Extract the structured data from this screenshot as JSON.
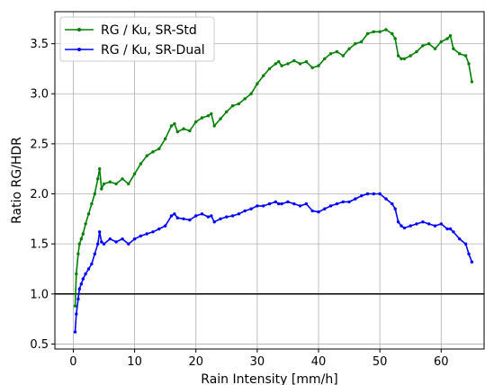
{
  "chart_data": {
    "type": "line",
    "xlabel": "Rain Intensity [mm/h]",
    "ylabel": "Ratio RG/HDR",
    "xlim": [
      -3,
      67
    ],
    "ylim": [
      0.45,
      3.82
    ],
    "xticks": [
      0,
      10,
      20,
      30,
      40,
      50,
      60
    ],
    "yticks": [
      0.5,
      1.0,
      1.5,
      2.0,
      2.5,
      3.0,
      3.5
    ],
    "grid": true,
    "legend_position": "top-left",
    "reference_line": {
      "y": 1.0,
      "color": "#000000"
    },
    "series": [
      {
        "name": "RG / Ku, SR-Std",
        "color": "#008000",
        "x": [
          0.3,
          0.5,
          0.8,
          1.0,
          1.3,
          1.6,
          2.0,
          2.5,
          3.0,
          3.5,
          4.0,
          4.3,
          4.6,
          5.0,
          6.0,
          7.0,
          8.0,
          9.0,
          10.0,
          11.0,
          12.0,
          13.0,
          14.0,
          15.0,
          16.0,
          16.5,
          17.0,
          18.0,
          19.0,
          20.0,
          21.0,
          22.0,
          22.5,
          23.0,
          24.0,
          25.0,
          26.0,
          27.0,
          28.0,
          29.0,
          30.0,
          31.0,
          32.0,
          33.0,
          33.5,
          34.0,
          35.0,
          36.0,
          37.0,
          38.0,
          39.0,
          40.0,
          41.0,
          42.0,
          43.0,
          44.0,
          45.0,
          46.0,
          47.0,
          48.0,
          49.0,
          50.0,
          51.0,
          52.0,
          52.5,
          53.0,
          53.5,
          54.0,
          55.0,
          56.0,
          57.0,
          58.0,
          59.0,
          60.0,
          61.0,
          61.5,
          62.0,
          63.0,
          64.0,
          64.5,
          65.0
        ],
        "y": [
          0.88,
          1.2,
          1.4,
          1.5,
          1.55,
          1.6,
          1.7,
          1.8,
          1.9,
          2.0,
          2.15,
          2.25,
          2.05,
          2.1,
          2.12,
          2.1,
          2.15,
          2.1,
          2.2,
          2.3,
          2.38,
          2.42,
          2.45,
          2.55,
          2.68,
          2.7,
          2.62,
          2.65,
          2.63,
          2.72,
          2.76,
          2.78,
          2.8,
          2.68,
          2.75,
          2.82,
          2.88,
          2.9,
          2.95,
          3.0,
          3.1,
          3.18,
          3.25,
          3.3,
          3.32,
          3.28,
          3.3,
          3.33,
          3.3,
          3.32,
          3.26,
          3.28,
          3.35,
          3.4,
          3.42,
          3.38,
          3.45,
          3.5,
          3.52,
          3.6,
          3.62,
          3.62,
          3.64,
          3.6,
          3.55,
          3.38,
          3.35,
          3.35,
          3.38,
          3.42,
          3.48,
          3.5,
          3.45,
          3.52,
          3.55,
          3.58,
          3.45,
          3.4,
          3.38,
          3.3,
          3.12
        ]
      },
      {
        "name": "RG / Ku, SR-Dual",
        "color": "#0000ff",
        "x": [
          0.3,
          0.5,
          0.8,
          1.0,
          1.3,
          1.6,
          2.0,
          2.5,
          3.0,
          3.5,
          4.0,
          4.3,
          4.6,
          5.0,
          6.0,
          7.0,
          8.0,
          9.0,
          10.0,
          11.0,
          12.0,
          13.0,
          14.0,
          15.0,
          16.0,
          16.5,
          17.0,
          18.0,
          19.0,
          20.0,
          21.0,
          22.0,
          22.5,
          23.0,
          24.0,
          25.0,
          26.0,
          27.0,
          28.0,
          29.0,
          30.0,
          31.0,
          32.0,
          33.0,
          33.5,
          34.0,
          35.0,
          36.0,
          37.0,
          38.0,
          39.0,
          40.0,
          41.0,
          42.0,
          43.0,
          44.0,
          45.0,
          46.0,
          47.0,
          48.0,
          49.0,
          50.0,
          51.0,
          52.0,
          52.5,
          53.0,
          53.5,
          54.0,
          55.0,
          56.0,
          57.0,
          58.0,
          59.0,
          60.0,
          61.0,
          61.5,
          62.0,
          63.0,
          64.0,
          64.5,
          65.0
        ],
        "y": [
          0.62,
          0.8,
          0.95,
          1.05,
          1.1,
          1.15,
          1.2,
          1.25,
          1.3,
          1.4,
          1.5,
          1.62,
          1.52,
          1.5,
          1.55,
          1.52,
          1.55,
          1.5,
          1.55,
          1.58,
          1.6,
          1.62,
          1.65,
          1.68,
          1.78,
          1.8,
          1.76,
          1.75,
          1.74,
          1.78,
          1.8,
          1.77,
          1.78,
          1.72,
          1.75,
          1.77,
          1.78,
          1.8,
          1.83,
          1.85,
          1.88,
          1.88,
          1.9,
          1.92,
          1.9,
          1.9,
          1.92,
          1.9,
          1.88,
          1.9,
          1.83,
          1.82,
          1.85,
          1.88,
          1.9,
          1.92,
          1.92,
          1.95,
          1.98,
          2.0,
          2.0,
          2.0,
          1.95,
          1.9,
          1.85,
          1.72,
          1.68,
          1.66,
          1.68,
          1.7,
          1.72,
          1.7,
          1.68,
          1.7,
          1.65,
          1.65,
          1.62,
          1.55,
          1.5,
          1.4,
          1.32
        ]
      }
    ]
  }
}
